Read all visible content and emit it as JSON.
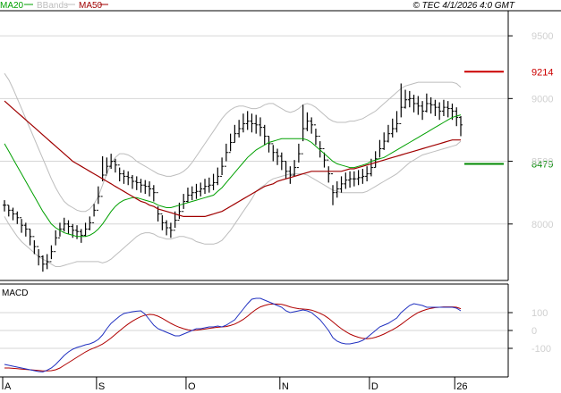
{
  "chart_data": {
    "type": "line",
    "title": "",
    "watermark": "© TEC 4/1/2026 4:0 GMT",
    "legend": [
      {
        "name": "MA20",
        "color": "#00a000"
      },
      {
        "name": "BBands",
        "color": "#bdbdbd"
      },
      {
        "name": "MA50",
        "color": "#a00000"
      }
    ],
    "price_axis": {
      "ylim": [
        7550,
        9700
      ],
      "ticks": [
        8000,
        8500,
        9000,
        9500
      ]
    },
    "x_axis": {
      "months": [
        {
          "label": "A",
          "index": 0
        },
        {
          "label": "S",
          "index": 22
        },
        {
          "label": "O",
          "index": 43
        },
        {
          "label": "N",
          "index": 65
        },
        {
          "label": "D",
          "index": 86
        },
        {
          "label": "26",
          "index": 106
        }
      ],
      "count": 108
    },
    "price_series": [
      8150,
      8110,
      8080,
      8050,
      7990,
      7960,
      7900,
      7820,
      7740,
      7680,
      7700,
      7780,
      7890,
      7960,
      8000,
      7980,
      7950,
      7940,
      7910,
      7960,
      8010,
      8110,
      8220,
      8390,
      8460,
      8500,
      8470,
      8400,
      8380,
      8370,
      8340,
      8330,
      8310,
      8300,
      8280,
      8250,
      8080,
      8010,
      7970,
      7950,
      8030,
      8100,
      8180,
      8230,
      8250,
      8260,
      8280,
      8300,
      8310,
      8330,
      8380,
      8460,
      8570,
      8650,
      8720,
      8760,
      8800,
      8820,
      8800,
      8790,
      8770,
      8700,
      8640,
      8570,
      8540,
      8500,
      8420,
      8390,
      8450,
      8560,
      8760,
      8820,
      8790,
      8700,
      8600,
      8510,
      8400,
      8250,
      8280,
      8320,
      8350,
      8360,
      8360,
      8370,
      8380,
      8400,
      8450,
      8520,
      8600,
      8660,
      8720,
      8760,
      8800,
      8930,
      8990,
      9000,
      8960,
      8940,
      8900,
      8960,
      8950,
      8930,
      8900,
      8930,
      8920,
      8900,
      8850,
      8790
    ],
    "price_highs": [
      8190,
      8150,
      8130,
      8100,
      8040,
      8010,
      7960,
      7870,
      7800,
      7750,
      7760,
      7830,
      7950,
      8010,
      8050,
      8030,
      8000,
      7990,
      7960,
      8010,
      8060,
      8160,
      8300,
      8540,
      8530,
      8560,
      8520,
      8450,
      8430,
      8420,
      8390,
      8380,
      8360,
      8350,
      8340,
      8310,
      8140,
      8070,
      8030,
      8010,
      8100,
      8170,
      8240,
      8290,
      8300,
      8320,
      8330,
      8360,
      8370,
      8400,
      8450,
      8530,
      8640,
      8720,
      8790,
      8830,
      8880,
      8900,
      8880,
      8870,
      8850,
      8790,
      8700,
      8630,
      8600,
      8570,
      8500,
      8460,
      8510,
      8640,
      8950,
      8890,
      8850,
      8760,
      8660,
      8570,
      8460,
      8310,
      8340,
      8380,
      8410,
      8420,
      8420,
      8430,
      8440,
      8460,
      8520,
      8580,
      8670,
      8730,
      8790,
      8840,
      8900,
      9120,
      9070,
      9060,
      9030,
      9020,
      8980,
      9040,
      9010,
      8990,
      8970,
      8990,
      8980,
      8960,
      8930,
      8860
    ],
    "price_lows": [
      8100,
      8060,
      8030,
      8000,
      7930,
      7900,
      7830,
      7760,
      7670,
      7620,
      7640,
      7720,
      7830,
      7900,
      7940,
      7920,
      7890,
      7880,
      7850,
      7900,
      7950,
      8060,
      8160,
      8340,
      8400,
      8440,
      8410,
      8340,
      8320,
      8310,
      8280,
      8270,
      8250,
      8240,
      8220,
      8180,
      8020,
      7950,
      7910,
      7890,
      7970,
      8040,
      8120,
      8170,
      8190,
      8200,
      8220,
      8240,
      8250,
      8270,
      8310,
      8390,
      8500,
      8580,
      8650,
      8690,
      8730,
      8750,
      8730,
      8720,
      8700,
      8630,
      8570,
      8500,
      8470,
      8430,
      8360,
      8320,
      8380,
      8490,
      8660,
      8740,
      8720,
      8630,
      8530,
      8450,
      8330,
      8150,
      8210,
      8250,
      8280,
      8290,
      8300,
      8310,
      8320,
      8340,
      8380,
      8450,
      8530,
      8590,
      8650,
      8690,
      8730,
      8850,
      8920,
      8930,
      8890,
      8870,
      8830,
      8890,
      8880,
      8860,
      8830,
      8860,
      8850,
      8830,
      8780,
      8700
    ],
    "ma20": [
      8640,
      8580,
      8520,
      8460,
      8400,
      8340,
      8280,
      8220,
      8160,
      8100,
      8050,
      8000,
      7970,
      7950,
      7930,
      7920,
      7910,
      7900,
      7900,
      7900,
      7910,
      7930,
      7960,
      8000,
      8050,
      8100,
      8140,
      8170,
      8190,
      8200,
      8210,
      8210,
      8200,
      8190,
      8180,
      8170,
      8150,
      8140,
      8130,
      8130,
      8140,
      8150,
      8160,
      8170,
      8180,
      8190,
      8200,
      8210,
      8220,
      8230,
      8260,
      8290,
      8330,
      8370,
      8410,
      8450,
      8490,
      8530,
      8560,
      8590,
      8610,
      8630,
      8650,
      8660,
      8670,
      8680,
      8680,
      8680,
      8680,
      8680,
      8680,
      8670,
      8650,
      8620,
      8590,
      8560,
      8530,
      8500,
      8480,
      8470,
      8460,
      8450,
      8450,
      8460,
      8470,
      8480,
      8500,
      8510,
      8520,
      8530,
      8550,
      8570,
      8590,
      8610,
      8630,
      8650,
      8670,
      8690,
      8710,
      8730,
      8750,
      8770,
      8790,
      8810,
      8830,
      8850,
      8860,
      8870
    ],
    "bb_upper": [
      9200,
      9150,
      9080,
      9000,
      8920,
      8840,
      8760,
      8680,
      8600,
      8520,
      8440,
      8360,
      8290,
      8230,
      8180,
      8150,
      8130,
      8110,
      8100,
      8100,
      8120,
      8160,
      8220,
      8310,
      8400,
      8480,
      8530,
      8560,
      8560,
      8550,
      8530,
      8500,
      8480,
      8460,
      8440,
      8420,
      8400,
      8390,
      8380,
      8380,
      8390,
      8400,
      8420,
      8450,
      8490,
      8540,
      8590,
      8640,
      8690,
      8740,
      8790,
      8840,
      8880,
      8910,
      8930,
      8940,
      8940,
      8930,
      8920,
      8920,
      8930,
      8950,
      8960,
      8960,
      8940,
      8920,
      8900,
      8890,
      8900,
      8920,
      8950,
      8960,
      8950,
      8930,
      8900,
      8870,
      8840,
      8820,
      8810,
      8810,
      8810,
      8820,
      8820,
      8830,
      8840,
      8860,
      8880,
      8900,
      8930,
      8960,
      8990,
      9020,
      9050,
      9080,
      9100,
      9110,
      9120,
      9130,
      9130,
      9130,
      9130,
      9130,
      9130,
      9130,
      9130,
      9130,
      9120,
      9090
    ],
    "bb_lower": [
      8060,
      8000,
      7950,
      7900,
      7860,
      7830,
      7800,
      7770,
      7740,
      7720,
      7700,
      7680,
      7660,
      7660,
      7670,
      7680,
      7690,
      7700,
      7700,
      7700,
      7700,
      7700,
      7700,
      7690,
      7700,
      7720,
      7750,
      7780,
      7810,
      7840,
      7870,
      7900,
      7920,
      7930,
      7930,
      7920,
      7900,
      7890,
      7880,
      7880,
      7890,
      7900,
      7900,
      7890,
      7880,
      7860,
      7850,
      7840,
      7840,
      7840,
      7850,
      7870,
      7910,
      7950,
      8000,
      8050,
      8100,
      8150,
      8200,
      8260,
      8290,
      8310,
      8340,
      8360,
      8370,
      8380,
      8390,
      8400,
      8400,
      8400,
      8400,
      8390,
      8370,
      8350,
      8330,
      8310,
      8290,
      8270,
      8260,
      8250,
      8250,
      8250,
      8250,
      8250,
      8250,
      8260,
      8280,
      8300,
      8320,
      8340,
      8360,
      8380,
      8400,
      8430,
      8460,
      8490,
      8510,
      8530,
      8550,
      8560,
      8570,
      8580,
      8590,
      8600,
      8610,
      8620,
      8630,
      8660
    ],
    "ma50": [
      8980,
      8950,
      8920,
      8890,
      8860,
      8830,
      8800,
      8770,
      8740,
      8710,
      8680,
      8650,
      8620,
      8590,
      8560,
      8530,
      8500,
      8480,
      8460,
      8440,
      8420,
      8400,
      8380,
      8360,
      8340,
      8320,
      8300,
      8280,
      8260,
      8240,
      8220,
      8200,
      8180,
      8170,
      8150,
      8140,
      8120,
      8110,
      8100,
      8090,
      8080,
      8070,
      8060,
      8060,
      8060,
      8060,
      8060,
      8060,
      8070,
      8080,
      8090,
      8100,
      8120,
      8140,
      8160,
      8180,
      8200,
      8220,
      8240,
      8260,
      8280,
      8300,
      8310,
      8320,
      8340,
      8350,
      8360,
      8370,
      8380,
      8390,
      8400,
      8410,
      8420,
      8420,
      8420,
      8420,
      8420,
      8420,
      8420,
      8420,
      8430,
      8440,
      8440,
      8450,
      8460,
      8470,
      8480,
      8490,
      8500,
      8510,
      8520,
      8530,
      8540,
      8550,
      8560,
      8570,
      8580,
      8590,
      8600,
      8610,
      8620,
      8630,
      8640,
      8650,
      8660,
      8670,
      8670,
      8670
    ],
    "levels": [
      {
        "value": 9214,
        "label": "9214",
        "color": "#cc0000"
      },
      {
        "value": 8479,
        "label": "8479",
        "color": "#008800"
      }
    ],
    "macd_panel": {
      "title": "MACD",
      "ylim": [
        -260,
        260
      ],
      "ticks": [
        100,
        0,
        -100
      ],
      "tick_labels": [
        "100",
        "0",
        "-100"
      ],
      "macd": [
        -190,
        -195,
        -200,
        -205,
        -210,
        -215,
        -220,
        -225,
        -230,
        -232,
        -222,
        -210,
        -190,
        -165,
        -140,
        -120,
        -105,
        -95,
        -88,
        -80,
        -75,
        -65,
        -50,
        -25,
        10,
        40,
        60,
        80,
        95,
        100,
        105,
        108,
        110,
        90,
        60,
        30,
        10,
        0,
        -10,
        -20,
        -30,
        -30,
        -20,
        -10,
        0,
        10,
        10,
        15,
        20,
        20,
        25,
        20,
        30,
        45,
        60,
        90,
        120,
        150,
        175,
        180,
        180,
        170,
        160,
        150,
        140,
        130,
        110,
        100,
        105,
        110,
        115,
        110,
        100,
        80,
        60,
        30,
        0,
        -40,
        -60,
        -70,
        -75,
        -75,
        -70,
        -65,
        -55,
        -40,
        -20,
        0,
        20,
        30,
        40,
        55,
        70,
        100,
        120,
        140,
        150,
        145,
        140,
        130,
        130,
        130,
        130,
        130,
        130,
        130,
        125,
        110
      ],
      "signal": [
        -210,
        -210,
        -212,
        -214,
        -216,
        -218,
        -220,
        -222,
        -224,
        -226,
        -226,
        -225,
        -220,
        -210,
        -195,
        -180,
        -165,
        -150,
        -135,
        -120,
        -108,
        -98,
        -88,
        -76,
        -60,
        -42,
        -22,
        -2,
        18,
        36,
        52,
        66,
        78,
        86,
        90,
        88,
        80,
        68,
        54,
        40,
        28,
        18,
        10,
        4,
        0,
        2,
        5,
        8,
        12,
        15,
        18,
        20,
        22,
        28,
        36,
        48,
        62,
        80,
        100,
        118,
        132,
        140,
        146,
        148,
        148,
        146,
        140,
        132,
        126,
        122,
        120,
        118,
        114,
        106,
        96,
        84,
        68,
        48,
        28,
        10,
        -6,
        -20,
        -30,
        -38,
        -44,
        -46,
        -44,
        -38,
        -30,
        -20,
        -8,
        4,
        18,
        34,
        52,
        70,
        86,
        100,
        110,
        118,
        124,
        128,
        130,
        132,
        132,
        132,
        130,
        122
      ],
      "macd_color": "#2030c0",
      "signal_color": "#b00000"
    },
    "colors": {
      "bars": "#000000",
      "bbands": "#bdbdbd",
      "ma20": "#00a000",
      "ma50": "#a00000"
    }
  }
}
